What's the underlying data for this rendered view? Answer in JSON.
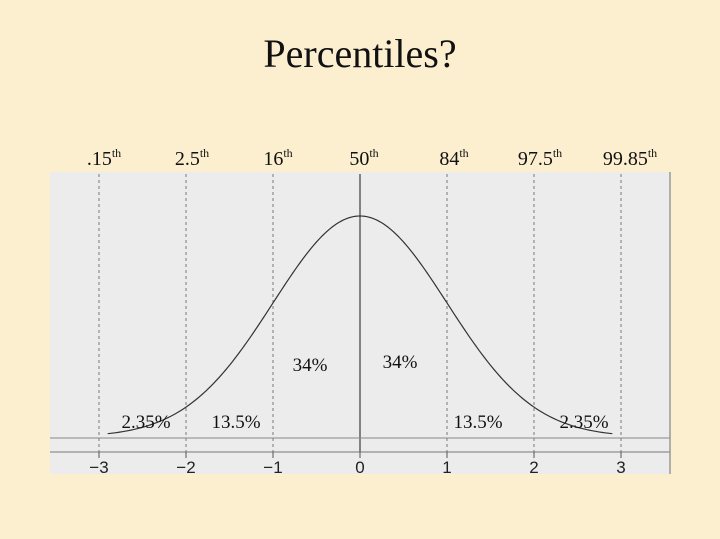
{
  "slide": {
    "title": "Percentiles?"
  },
  "chart_data": {
    "type": "line",
    "curve": "standard normal density",
    "x_ticks": [
      -3,
      -2,
      -1,
      0,
      1,
      2,
      3
    ],
    "x_tick_labels": [
      "−3",
      "−2",
      "−1",
      "0",
      "1",
      "2",
      "3"
    ],
    "xlim": [
      -3,
      3
    ],
    "percentile_lines": [
      {
        "x": -3,
        "label": ".15",
        "suffix": "th"
      },
      {
        "x": -2,
        "label": "2.5",
        "suffix": "th"
      },
      {
        "x": -1,
        "label": "16",
        "suffix": "th"
      },
      {
        "x": 0,
        "label": "50",
        "suffix": "th"
      },
      {
        "x": 1,
        "label": "84",
        "suffix": "th"
      },
      {
        "x": 2,
        "label": "97.5",
        "suffix": "th"
      },
      {
        "x": 3,
        "label": "99.85",
        "suffix": "th"
      }
    ],
    "area_labels": [
      {
        "text": "2.35%",
        "region": [
          -3,
          -2
        ]
      },
      {
        "text": "13.5%",
        "region": [
          -2,
          -1
        ]
      },
      {
        "text": "34%",
        "region": [
          -1,
          0
        ]
      },
      {
        "text": "34%",
        "region": [
          0,
          1
        ]
      },
      {
        "text": "13.5%",
        "region": [
          1,
          2
        ]
      },
      {
        "text": "2.35%",
        "region": [
          2,
          3
        ]
      }
    ],
    "grid": false
  }
}
